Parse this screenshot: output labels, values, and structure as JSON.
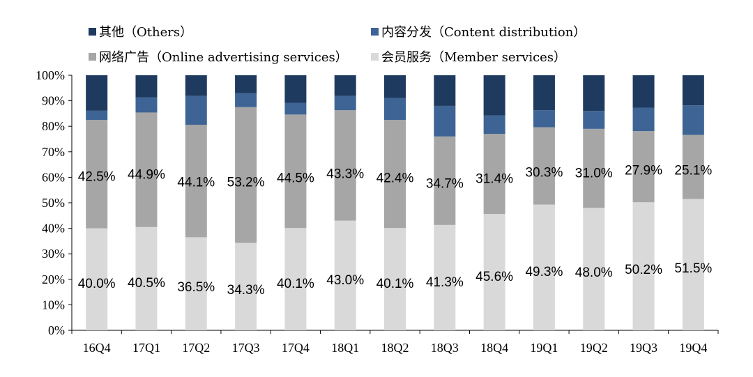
{
  "colors": {
    "others": "#1f3a5f",
    "content": "#3d6494",
    "advertising": "#a6a6a6",
    "member": "#d9d9d9"
  },
  "legend": [
    {
      "key": "others",
      "label": "其他（Others）"
    },
    {
      "key": "content",
      "label": "内容分发（Content distribution）"
    },
    {
      "key": "advertising",
      "label": "网络广告（Online advertising services）"
    },
    {
      "key": "member",
      "label": "会员服务（Member services）"
    }
  ],
  "chart_data": {
    "type": "bar",
    "stacked": true,
    "percent_stacked": true,
    "categories": [
      "16Q4",
      "17Q1",
      "17Q2",
      "17Q3",
      "17Q4",
      "18Q1",
      "18Q2",
      "18Q3",
      "18Q4",
      "19Q1",
      "19Q2",
      "19Q3",
      "19Q4"
    ],
    "y_tick_labels": [
      "0%",
      "10%",
      "20%",
      "30%",
      "40%",
      "50%",
      "60%",
      "70%",
      "80%",
      "90%",
      "100%"
    ],
    "ylim": [
      0,
      100
    ],
    "grid": false,
    "legend_position": "top",
    "series": [
      {
        "key": "member",
        "name": "会员服务（Member services）",
        "values": [
          40.0,
          40.5,
          36.5,
          34.3,
          40.1,
          43.0,
          40.1,
          41.3,
          45.6,
          49.3,
          48.0,
          50.2,
          51.5
        ],
        "labels": [
          "40.0%",
          "40.5%",
          "36.5%",
          "34.3%",
          "40.1%",
          "43.0%",
          "40.1%",
          "41.3%",
          "45.6%",
          "49.3%",
          "48.0%",
          "50.2%",
          "51.5%"
        ]
      },
      {
        "key": "advertising",
        "name": "网络广告（Online advertising services）",
        "values": [
          42.5,
          44.9,
          44.1,
          53.2,
          44.5,
          43.3,
          42.4,
          34.7,
          31.4,
          30.3,
          31.0,
          27.9,
          25.1
        ],
        "labels": [
          "42.5%",
          "44.9%",
          "44.1%",
          "53.2%",
          "44.5%",
          "43.3%",
          "42.4%",
          "34.7%",
          "31.4%",
          "30.3%",
          "31.0%",
          "27.9%",
          "25.1%"
        ]
      },
      {
        "key": "content",
        "name": "内容分发（Content distribution）",
        "values": [
          3.6,
          5.9,
          11.3,
          5.5,
          4.6,
          5.6,
          8.6,
          12.0,
          7.3,
          6.7,
          7.0,
          9.2,
          11.6
        ]
      },
      {
        "key": "others",
        "name": "其他（Others）",
        "values": [
          13.9,
          8.7,
          8.1,
          7.0,
          10.8,
          8.1,
          8.9,
          12.0,
          15.7,
          13.7,
          14.0,
          12.7,
          11.8
        ]
      }
    ]
  }
}
